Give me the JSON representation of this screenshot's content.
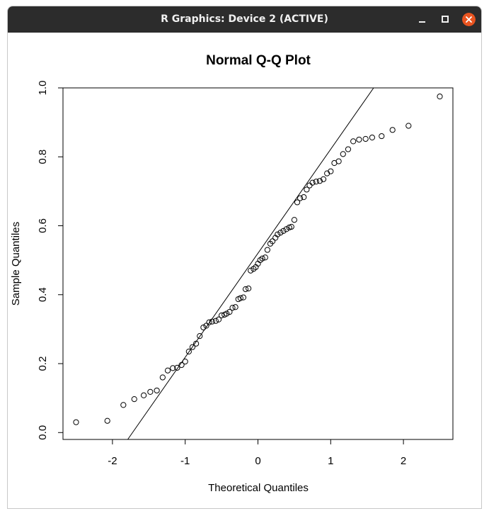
{
  "window": {
    "title": "R Graphics: Device 2 (ACTIVE)",
    "close_color": "#e95420"
  },
  "chart_data": {
    "type": "scatter",
    "title": "Normal Q-Q Plot",
    "xlabel": "Theoretical Quantiles",
    "ylabel": "Sample Quantiles",
    "xlim": [
      -2.68,
      2.68
    ],
    "ylim": [
      -0.02,
      1.0
    ],
    "x_ticks": [
      -2,
      -1,
      0,
      1,
      2
    ],
    "x_tick_labels": [
      "-2",
      "-1",
      "0",
      "1",
      "2"
    ],
    "y_ticks": [
      0.0,
      0.2,
      0.4,
      0.6,
      0.8,
      1.0
    ],
    "y_tick_labels": [
      "0.0",
      "0.2",
      "0.4",
      "0.6",
      "0.8",
      "1.0"
    ],
    "grid": false,
    "marker": "open-circle",
    "points": [
      [
        -2.5,
        0.03
      ],
      [
        -2.07,
        0.034
      ],
      [
        -1.85,
        0.08
      ],
      [
        -1.7,
        0.097
      ],
      [
        -1.57,
        0.108
      ],
      [
        -1.48,
        0.118
      ],
      [
        -1.39,
        0.122
      ],
      [
        -1.31,
        0.16
      ],
      [
        -1.24,
        0.18
      ],
      [
        -1.17,
        0.187
      ],
      [
        -1.11,
        0.188
      ],
      [
        -1.05,
        0.196
      ],
      [
        -1.0,
        0.206
      ],
      [
        -0.95,
        0.235
      ],
      [
        -0.9,
        0.248
      ],
      [
        -0.85,
        0.258
      ],
      [
        -0.8,
        0.28
      ],
      [
        -0.75,
        0.305
      ],
      [
        -0.71,
        0.31
      ],
      [
        -0.67,
        0.32
      ],
      [
        -0.63,
        0.322
      ],
      [
        -0.58,
        0.324
      ],
      [
        -0.54,
        0.328
      ],
      [
        -0.5,
        0.34
      ],
      [
        -0.46,
        0.342
      ],
      [
        -0.43,
        0.345
      ],
      [
        -0.39,
        0.35
      ],
      [
        -0.35,
        0.362
      ],
      [
        -0.31,
        0.364
      ],
      [
        -0.27,
        0.387
      ],
      [
        -0.24,
        0.39
      ],
      [
        -0.2,
        0.392
      ],
      [
        -0.17,
        0.416
      ],
      [
        -0.13,
        0.418
      ],
      [
        -0.1,
        0.47
      ],
      [
        -0.06,
        0.475
      ],
      [
        -0.03,
        0.48
      ],
      [
        0.0,
        0.49
      ],
      [
        0.03,
        0.5
      ],
      [
        0.06,
        0.505
      ],
      [
        0.1,
        0.508
      ],
      [
        0.13,
        0.53
      ],
      [
        0.17,
        0.548
      ],
      [
        0.2,
        0.555
      ],
      [
        0.24,
        0.565
      ],
      [
        0.27,
        0.575
      ],
      [
        0.31,
        0.58
      ],
      [
        0.35,
        0.585
      ],
      [
        0.39,
        0.59
      ],
      [
        0.43,
        0.595
      ],
      [
        0.46,
        0.597
      ],
      [
        0.5,
        0.617
      ],
      [
        0.54,
        0.668
      ],
      [
        0.58,
        0.68
      ],
      [
        0.63,
        0.683
      ],
      [
        0.67,
        0.705
      ],
      [
        0.71,
        0.717
      ],
      [
        0.75,
        0.725
      ],
      [
        0.8,
        0.728
      ],
      [
        0.85,
        0.73
      ],
      [
        0.9,
        0.735
      ],
      [
        0.95,
        0.752
      ],
      [
        1.0,
        0.758
      ],
      [
        1.05,
        0.782
      ],
      [
        1.11,
        0.787
      ],
      [
        1.17,
        0.808
      ],
      [
        1.24,
        0.822
      ],
      [
        1.31,
        0.845
      ],
      [
        1.39,
        0.85
      ],
      [
        1.48,
        0.852
      ],
      [
        1.57,
        0.856
      ],
      [
        1.7,
        0.86
      ],
      [
        1.85,
        0.878
      ],
      [
        2.07,
        0.89
      ],
      [
        2.5,
        0.975
      ]
    ],
    "line": {
      "x1": -1.79,
      "y1": -0.02,
      "x2": 1.59,
      "y2": 1.0
    }
  }
}
